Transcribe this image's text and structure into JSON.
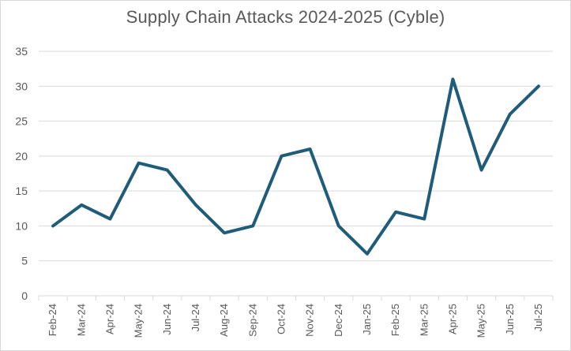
{
  "chart_data": {
    "type": "line",
    "title": "Supply Chain Attacks 2024-2025 (Cyble)",
    "xlabel": "",
    "ylabel": "",
    "categories": [
      "Feb-24",
      "Mar-24",
      "Apr-24",
      "May-24",
      "Jun-24",
      "Jul-24",
      "Aug-24",
      "Sep-24",
      "Oct-24",
      "Nov-24",
      "Dec-24",
      "Jan-25",
      "Feb-25",
      "Mar-25",
      "Apr-25",
      "May-25",
      "Jun-25",
      "Jul-25"
    ],
    "series": [
      {
        "values": [
          10,
          13,
          11,
          19,
          18,
          13,
          9,
          10,
          20,
          21,
          10,
          6,
          12,
          11,
          31,
          18,
          26,
          30
        ],
        "color": "#1f5c7a"
      }
    ],
    "ylim": [
      0,
      35
    ],
    "yticks": [
      0,
      5,
      10,
      15,
      20,
      25,
      30,
      35
    ],
    "grid": true,
    "legend": "none"
  }
}
